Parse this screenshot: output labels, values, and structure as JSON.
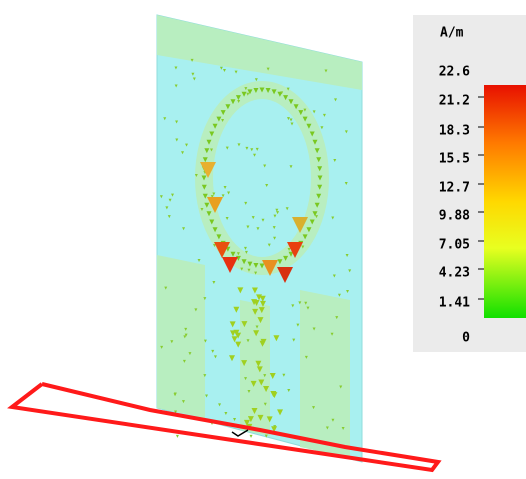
{
  "legend": {
    "unit": "A/m",
    "labels": [
      "22.6",
      "21.2",
      "18.3",
      "15.5",
      "12.7",
      "9.88",
      "7.05",
      "4.23",
      "1.41",
      "0"
    ]
  }
}
